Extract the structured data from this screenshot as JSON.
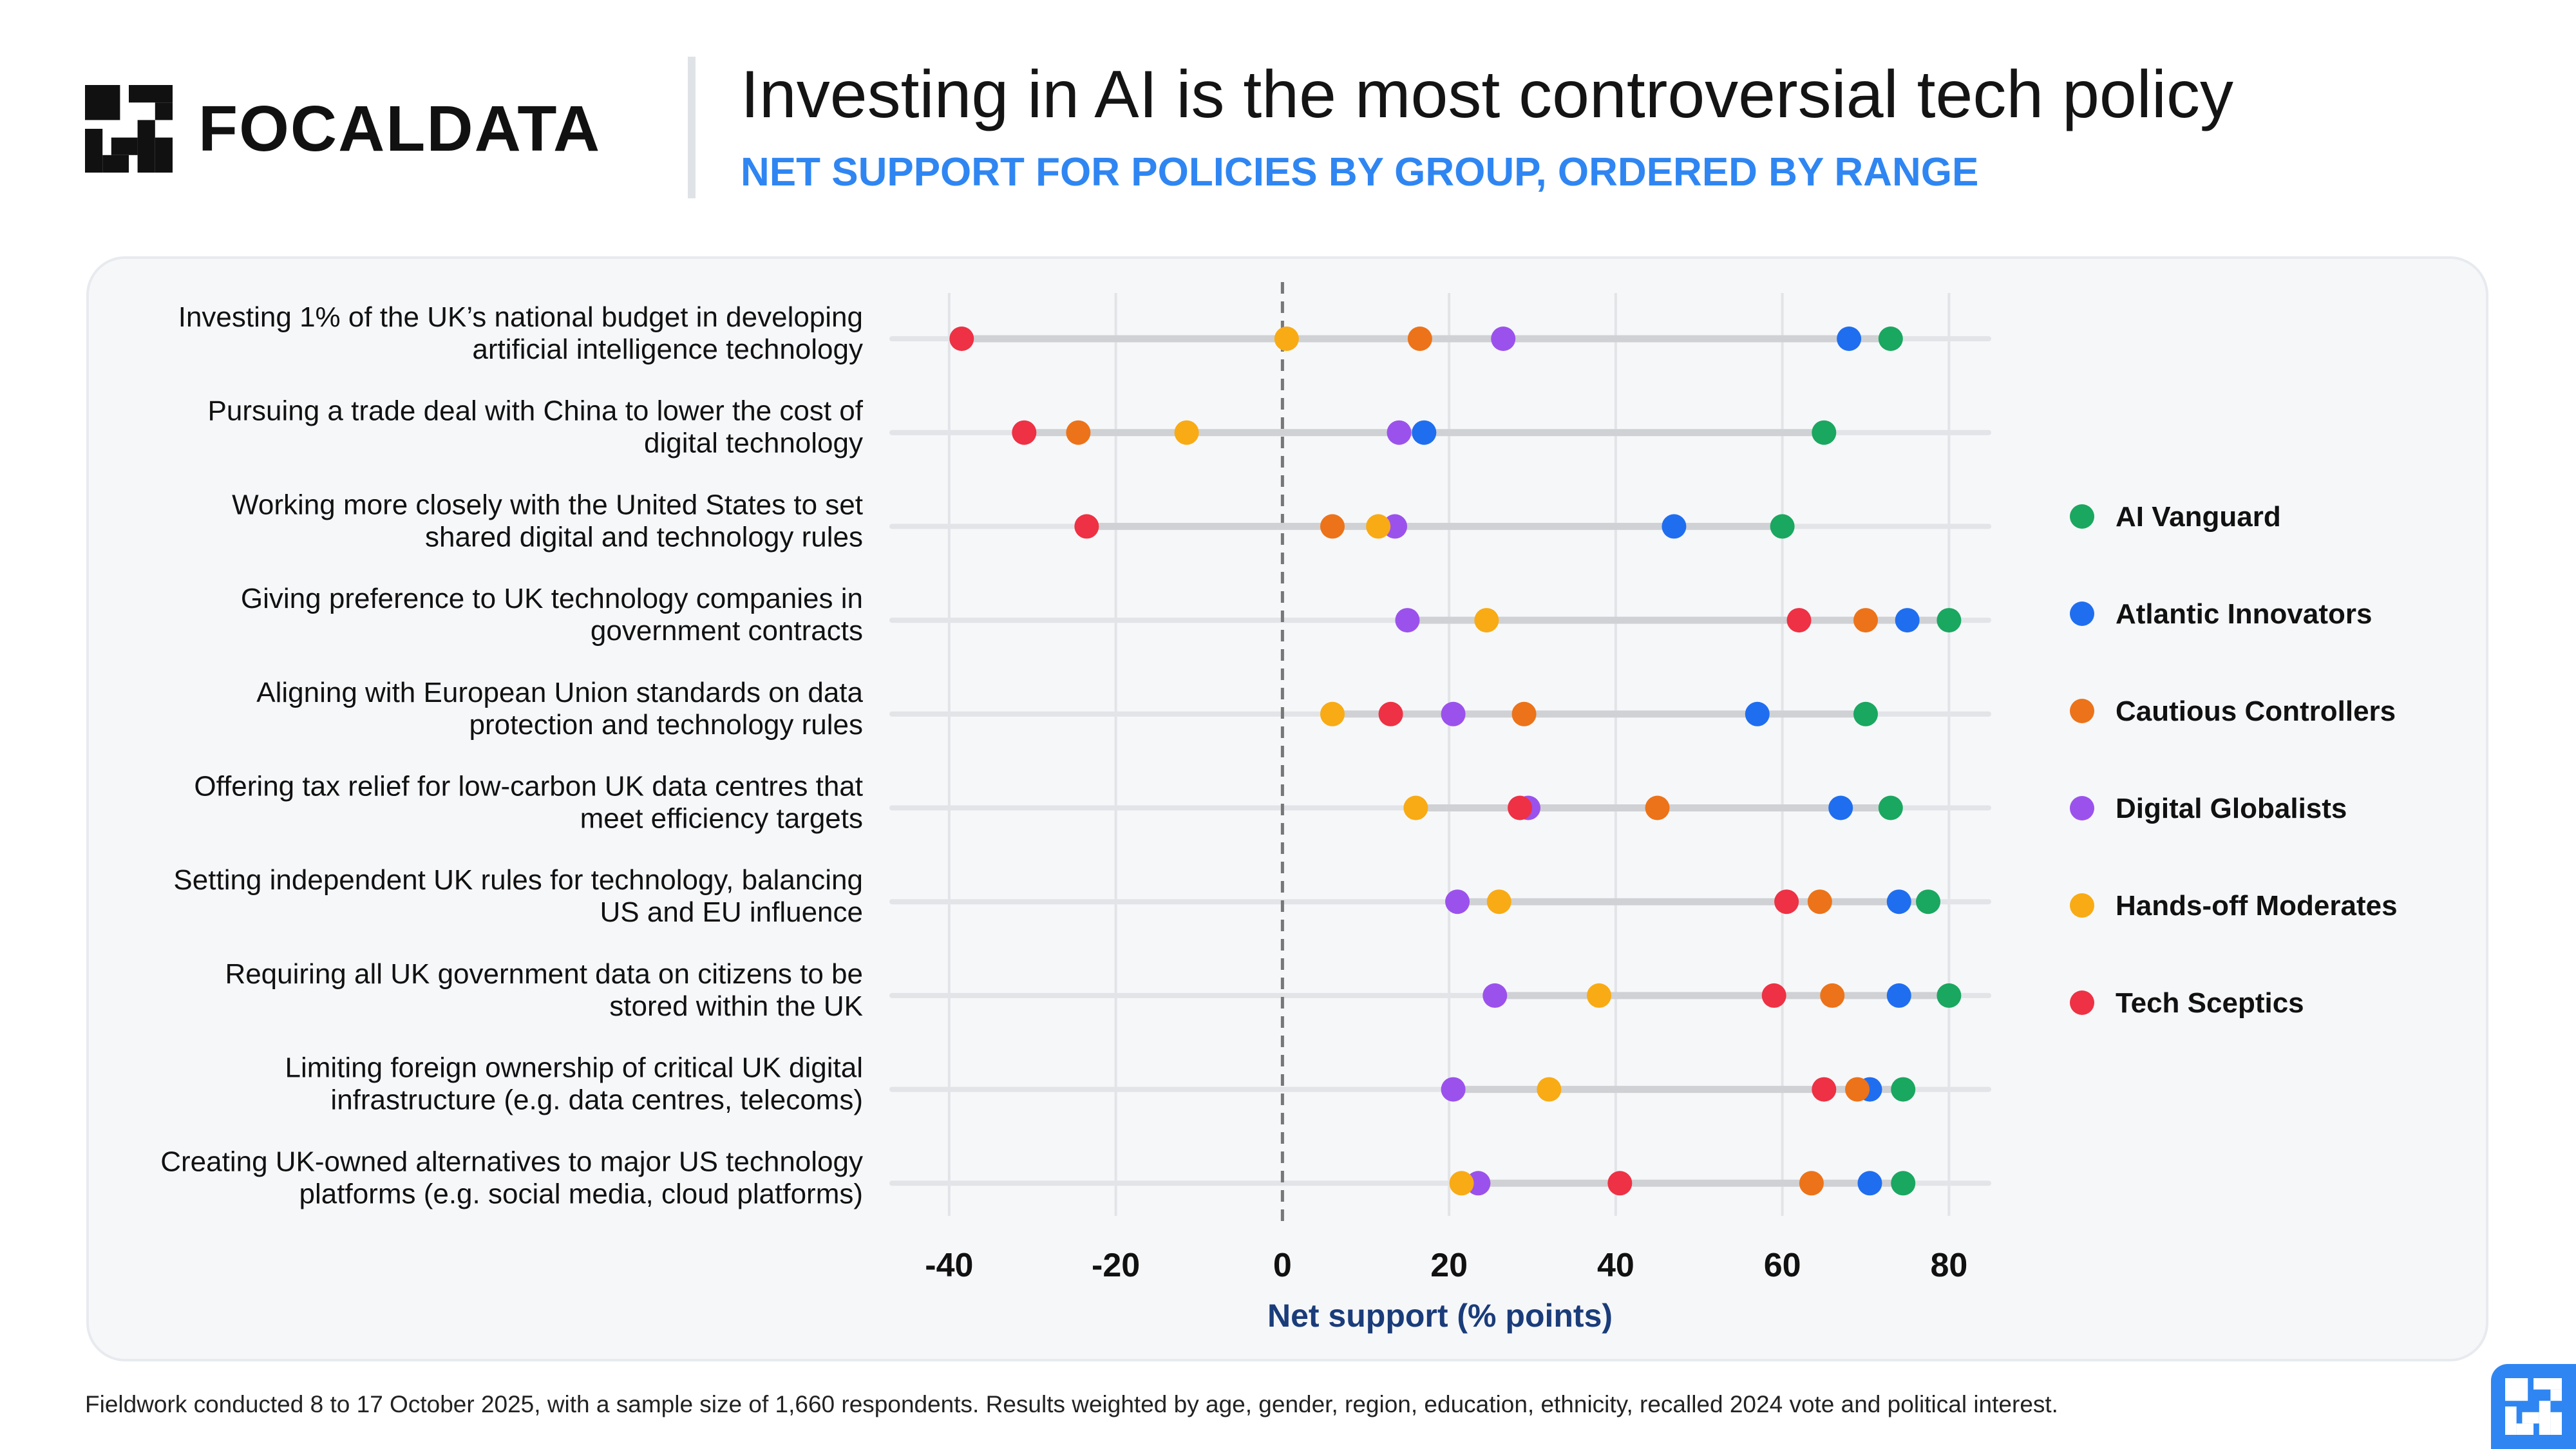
{
  "brand": {
    "name": "FOCALDATA"
  },
  "header": {
    "title": "Investing in AI is the most controversial tech policy",
    "subtitle": "NET SUPPORT FOR POLICIES BY GROUP, ORDERED BY RANGE"
  },
  "footnote": "Fieldwork conducted 8 to 17 October 2025, with a sample size of 1,660 respondents. Results weighted by age, gender, region, education, ethnicity, recalled 2024 vote and political interest.",
  "colors": {
    "accent": "#2f86f2",
    "grid": "#e2e4e8",
    "range_line": "#cfd1d4",
    "zero_line": "#777777",
    "axis_label": "#1a3c7a"
  },
  "chart_data": {
    "type": "dot-range",
    "title": "Investing in AI is the most controversial tech policy",
    "subtitle": "NET SUPPORT FOR POLICIES BY GROUP, ORDERED BY RANGE",
    "xlabel": "Net support (% points)",
    "xlim": [
      -42,
      86
    ],
    "xticks": [
      -40,
      -20,
      0,
      20,
      40,
      60,
      80
    ],
    "tick_labels": [
      "-40",
      "-20",
      "0",
      "20",
      "40",
      "60",
      "80"
    ],
    "grid": true,
    "legend_position": "right",
    "categories": [
      [
        "Investing 1% of the UK’s national budget in developing",
        "artificial intelligence technology"
      ],
      [
        "Pursuing a trade deal with China to lower the cost of",
        "digital technology"
      ],
      [
        "Working more closely with the United States to set",
        "shared digital and technology rules"
      ],
      [
        "Giving preference to UK technology companies in",
        "government contracts"
      ],
      [
        "Aligning with European Union standards on data",
        "protection and technology rules"
      ],
      [
        "Offering tax relief for low-carbon UK data centres that",
        "meet efficiency targets"
      ],
      [
        "Setting independent UK rules for technology, balancing",
        "US and EU influence"
      ],
      [
        "Requiring all UK government data on citizens to be",
        "stored within the UK"
      ],
      [
        "Limiting foreign ownership of critical UK digital",
        "infrastructure (e.g. data centres, telecoms)"
      ],
      [
        "Creating UK-owned alternatives to major US technology",
        "platforms (e.g. social media, cloud platforms)"
      ]
    ],
    "series": [
      {
        "name": "AI Vanguard",
        "color": "#1aa760",
        "values": [
          73,
          65,
          60,
          80,
          70,
          73,
          77.5,
          80,
          74.5,
          74.5
        ]
      },
      {
        "name": "Atlantic Innovators",
        "color": "#1f6ef0",
        "values": [
          68,
          17,
          47,
          75,
          57,
          67,
          74,
          74,
          70.5,
          70.5
        ]
      },
      {
        "name": "Cautious Controllers",
        "color": "#ec7319",
        "values": [
          16.5,
          -24.5,
          6,
          70,
          29,
          45,
          64.5,
          66,
          69,
          63.5
        ]
      },
      {
        "name": "Digital Globalists",
        "color": "#9b52ec",
        "values": [
          26.5,
          14,
          13.5,
          15,
          20.5,
          29.5,
          21,
          25.5,
          20.5,
          23.5
        ]
      },
      {
        "name": "Hands-off Moderates",
        "color": "#f8ab14",
        "values": [
          0.5,
          -11.5,
          11.5,
          24.5,
          6,
          16,
          26,
          38,
          32,
          21.5
        ]
      },
      {
        "name": "Tech Sceptics",
        "color": "#ee3144",
        "values": [
          -38.5,
          -31,
          -23.5,
          62,
          13,
          28.5,
          60.5,
          59,
          65,
          40.5
        ]
      }
    ]
  }
}
